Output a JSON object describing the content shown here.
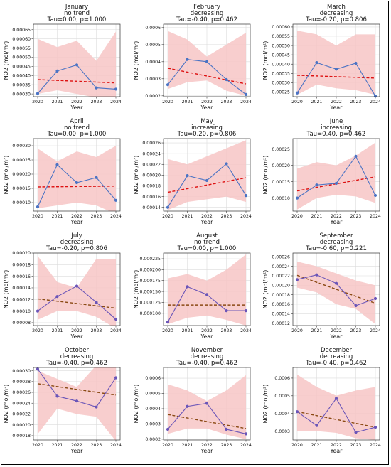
{
  "chart_data": [
    {
      "type": "line",
      "month": "January",
      "trend": "no trend",
      "stats": "Tau=0.00, p=1.000",
      "xlabel": "Year",
      "ylabel": "NO2 (mol/m²)",
      "x": [
        "2020",
        "2021",
        "2022",
        "2023",
        "2024"
      ],
      "y": [
        0.000302,
        0.000425,
        0.000458,
        0.000333,
        0.000326
      ],
      "trend_line": [
        0.000378,
        0.00036
      ],
      "band_upper": [
        0.0006,
        0.000555,
        0.00059,
        0.00048,
        0.00064
      ],
      "band_lower": [
        0.0003,
        0.00032,
        0.0003,
        0.00028,
        0.00026
      ],
      "ylim": [
        0.000285,
        0.00068
      ],
      "yticks": [
        "0.00030",
        "0.00035",
        "0.00040",
        "0.00045",
        "0.00050",
        "0.00055",
        "0.00060",
        "0.00065"
      ],
      "ytick_values": [
        0.0003,
        0.00035,
        0.0004,
        0.00045,
        0.0005,
        0.00055,
        0.0006,
        0.00065
      ]
    },
    {
      "type": "line",
      "month": "February",
      "trend": "decreasing",
      "stats": "Tau=-0.40, p=0.462",
      "xlabel": "Year",
      "ylabel": "NO2 (mol/m²)",
      "x": [
        "2020",
        "2021",
        "2022",
        "2023",
        "2024"
      ],
      "y": [
        0.000265,
        0.000413,
        0.0004,
        0.000295,
        0.000208
      ],
      "trend_line": [
        0.000362,
        0.00027
      ],
      "band_upper": [
        0.00058,
        0.00053,
        0.00043,
        0.0005,
        0.00057
      ],
      "band_lower": [
        0.00024,
        0.00028,
        0.00029,
        0.00023,
        0.0002
      ],
      "ylim": [
        0.000195,
        0.00062
      ],
      "yticks": [
        "0.0002",
        "0.0003",
        "0.0004",
        "0.0005",
        "0.0006"
      ],
      "ytick_values": [
        0.0002,
        0.0003,
        0.0004,
        0.0005,
        0.0006
      ]
    },
    {
      "type": "line",
      "month": "March",
      "trend": "decreasing",
      "stats": "Tau=-0.20, p=0.806",
      "xlabel": "Year",
      "ylabel": "NO2 (mol/m²)",
      "x": [
        "2020",
        "2021",
        "2022",
        "2023",
        "2024"
      ],
      "y": [
        0.000245,
        0.000408,
        0.000373,
        0.000405,
        0.000228
      ],
      "trend_line": [
        0.00034,
        0.000325
      ],
      "band_upper": [
        0.00058,
        0.00056,
        0.0005,
        0.00056,
        0.00056
      ],
      "band_lower": [
        0.000235,
        0.00029,
        0.00027,
        0.00026,
        0.000235
      ],
      "ylim": [
        0.000225,
        0.000615
      ],
      "yticks": [
        "0.00025",
        "0.00030",
        "0.00035",
        "0.00040",
        "0.00045",
        "0.00050",
        "0.00055",
        "0.00060"
      ],
      "ytick_values": [
        0.00025,
        0.0003,
        0.00035,
        0.0004,
        0.00045,
        0.0005,
        0.00055,
        0.0006
      ]
    },
    {
      "type": "line",
      "month": "April",
      "trend": "no trend",
      "stats": "Tau=0.00, p=1.000",
      "xlabel": "Year",
      "ylabel": "NO2 (mol/m²)",
      "x": [
        "2020",
        "2021",
        "2022",
        "2023",
        "2024"
      ],
      "y": [
        8.5e-05,
        0.000233,
        0.00017,
        0.000188,
        0.000108
      ],
      "trend_line": [
        0.000155,
        0.000158
      ],
      "band_upper": [
        0.00029,
        0.000245,
        0.00028,
        0.00026,
        0.0003
      ],
      "band_lower": [
        8e-05,
        9e-05,
        0.0001,
        9e-05,
        6e-05
      ],
      "ylim": [
        7e-05,
        0.000325
      ],
      "yticks": [
        "0.00010",
        "0.00015",
        "0.00020",
        "0.00025",
        "0.00030"
      ],
      "ytick_values": [
        0.0001,
        0.00015,
        0.0002,
        0.00025,
        0.0003
      ]
    },
    {
      "type": "line",
      "month": "May",
      "trend": "increasing",
      "stats": "Tau=0.20, p=0.806",
      "xlabel": "Year",
      "ylabel": "NO2 (mol/m²)",
      "x": [
        "2020",
        "2021",
        "2022",
        "2023",
        "2024"
      ],
      "y": [
        0.00014,
        0.000199,
        0.00019,
        0.000221,
        0.000162
      ],
      "trend_line": [
        0.000168,
        0.000195
      ],
      "band_upper": [
        0.00023,
        0.00022,
        0.000235,
        0.00025,
        0.000265
      ],
      "band_lower": [
        0.000135,
        0.00015,
        0.000155,
        0.00016,
        0.00015
      ],
      "ylim": [
        0.000133,
        0.000268
      ],
      "yticks": [
        "0.00014",
        "0.00016",
        "0.00018",
        "0.00020",
        "0.00022",
        "0.00024",
        "0.00026"
      ],
      "ytick_values": [
        0.00014,
        0.00016,
        0.00018,
        0.0002,
        0.00022,
        0.00024,
        0.00026
      ]
    },
    {
      "type": "line",
      "month": "June",
      "trend": "increasing",
      "stats": "Tau=0.40, p=0.462",
      "xlabel": "Year",
      "ylabel": "NO2 (mol/m²)",
      "x": [
        "2020",
        "2021",
        "2022",
        "2023",
        "2024"
      ],
      "y": [
        0.0001,
        0.00014,
        0.000145,
        0.000228,
        0.000108
      ],
      "trend_line": [
        0.000122,
        0.000165
      ],
      "band_upper": [
        0.00019,
        0.00021,
        0.0002,
        0.00023,
        0.00027
      ],
      "band_lower": [
        6.5e-05,
        0.0001,
        0.00011,
        0.000105,
        8.5e-05
      ],
      "ylim": [
        6e-05,
        0.000282
      ],
      "yticks": [
        "0.00010",
        "0.00015",
        "0.00020",
        "0.00025"
      ],
      "ytick_values": [
        0.0001,
        0.00015,
        0.0002,
        0.00025
      ]
    },
    {
      "type": "line",
      "month": "July",
      "trend": "decreasing",
      "stats": "Tau=-0.20, p=0.806",
      "xlabel": "Year",
      "ylabel": "NO2 (mol/m²)",
      "x": [
        "2020",
        "2021",
        "2022",
        "2023",
        "2024"
      ],
      "y": [
        0.0001,
        0.000125,
        0.000143,
        0.000115,
        8.6e-05
      ],
      "trend_line": [
        0.000121,
        0.000105
      ],
      "band_upper": [
        0.000195,
        0.00015,
        0.00014,
        0.00019,
        0.00019
      ],
      "band_lower": [
        8.5e-05,
        0.0001,
        0.0001,
        9e-05,
        7e-05
      ],
      "ylim": [
        7.5e-05,
        0.0002
      ],
      "yticks": [
        "0.00008",
        "0.00010",
        "0.00012",
        "0.00014",
        "0.00016",
        "0.00018",
        "0.00020"
      ],
      "ytick_values": [
        8e-05,
        0.0001,
        0.00012,
        0.00014,
        0.00016,
        0.00018,
        0.0002
      ]
    },
    {
      "type": "line",
      "month": "August",
      "trend": "no trend",
      "stats": "Tau=0.00, p=1.000",
      "xlabel": "Year",
      "ylabel": "NO2 (mol/m²)",
      "x": [
        "2020",
        "2021",
        "2022",
        "2023",
        "2024"
      ],
      "y": [
        8e-05,
        0.000161,
        0.000143,
        0.000106,
        0.000106
      ],
      "trend_line": [
        0.000119,
        0.000119
      ],
      "band_upper": [
        0.00018,
        0.00019,
        0.000175,
        0.0002,
        0.000235
      ],
      "band_lower": [
        7.5e-05,
        9e-05,
        9.5e-05,
        8.5e-05,
        7.2e-05
      ],
      "ylim": [
        7.2e-05,
        0.000238
      ],
      "yticks": [
        "0.000100",
        "0.000125",
        "0.000150",
        "0.000175",
        "0.000200",
        "0.000225"
      ],
      "ytick_values": [
        0.0001,
        0.000125,
        0.00015,
        0.000175,
        0.0002,
        0.000225
      ]
    },
    {
      "type": "line",
      "month": "September",
      "trend": "decreasing",
      "stats": "Tau=-0.60, p=0.221",
      "xlabel": "Year",
      "ylabel": "NO2 (mol/m²)",
      "x": [
        "2020",
        "2021",
        "2022",
        "2023",
        "2024"
      ],
      "y": [
        0.000212,
        0.000222,
        0.000204,
        0.000157,
        0.000172
      ],
      "trend_line": [
        0.000221,
        0.000162
      ],
      "band_upper": [
        0.00025,
        0.00024,
        0.000225,
        0.00021,
        0.0002
      ],
      "band_lower": [
        0.000195,
        0.000185,
        0.00016,
        0.00015,
        0.000118
      ],
      "ylim": [
        0.000115,
        0.000268
      ],
      "yticks": [
        "0.00012",
        "0.00014",
        "0.00016",
        "0.00018",
        "0.00020",
        "0.00022",
        "0.00024",
        "0.00026"
      ],
      "ytick_values": [
        0.00012,
        0.00014,
        0.00016,
        0.00018,
        0.0002,
        0.00022,
        0.00024,
        0.00026
      ]
    },
    {
      "type": "line",
      "month": "October",
      "trend": "decreasing",
      "stats": "Tau=-0.40, p=0.462",
      "xlabel": "Year",
      "ylabel": "NO2 (mol/m²)",
      "x": [
        "2020",
        "2021",
        "2022",
        "2023",
        "2024"
      ],
      "y": [
        0.000303,
        0.000253,
        0.000244,
        0.000233,
        0.000287
      ],
      "trend_line": [
        0.000276,
        0.000255
      ],
      "band_upper": [
        0.0003,
        0.000285,
        0.00027,
        0.00031,
        0.000325
      ],
      "band_lower": [
        0.000183,
        0.00023,
        0.00022,
        0.000215,
        0.00017
      ],
      "ylim": [
        0.000172,
        0.000306
      ],
      "yticks": [
        "0.00018",
        "0.00020",
        "0.00022",
        "0.00024",
        "0.00026",
        "0.00028",
        "0.00030"
      ],
      "ytick_values": [
        0.00018,
        0.0002,
        0.00022,
        0.00024,
        0.00026,
        0.00028,
        0.0003
      ]
    },
    {
      "type": "line",
      "month": "November",
      "trend": "decreasing",
      "stats": "Tau=-0.40, p=0.462",
      "xlabel": "Year",
      "ylabel": "NO2 (mol/m²)",
      "x": [
        "2020",
        "2021",
        "2022",
        "2023",
        "2024"
      ],
      "y": [
        0.000265,
        0.000415,
        0.000435,
        0.000265,
        0.000235
      ],
      "trend_line": [
        0.000362,
        0.00027
      ],
      "band_upper": [
        0.00056,
        0.00052,
        0.00045,
        0.00052,
        0.00062
      ],
      "band_lower": [
        0.000235,
        0.00027,
        0.00027,
        0.00023,
        0.0002
      ],
      "ylim": [
        0.000195,
        0.00067
      ],
      "yticks": [
        "0.0002",
        "0.0003",
        "0.0004",
        "0.0005",
        "0.0006"
      ],
      "ytick_values": [
        0.0002,
        0.0003,
        0.0004,
        0.0005,
        0.0006
      ]
    },
    {
      "type": "line",
      "month": "December",
      "trend": "decreasing",
      "stats": "Tau=-0.40, p=0.462",
      "xlabel": "Year",
      "ylabel": "NO2 (mol/m²)",
      "x": [
        "2020",
        "2021",
        "2022",
        "2023",
        "2024"
      ],
      "y": [
        0.00041,
        0.000332,
        0.000485,
        0.000293,
        0.000322
      ],
      "trend_line": [
        0.00041,
        0.000322
      ],
      "band_upper": [
        0.00062,
        0.00055,
        0.0005,
        0.00053,
        0.00055
      ],
      "band_lower": [
        0.0003,
        0.0003,
        0.00029,
        0.00026,
        0.00025
      ],
      "ylim": [
        0.00025,
        0.00066
      ],
      "yticks": [
        "0.0003",
        "0.0004",
        "0.0005",
        "0.0006"
      ],
      "ytick_values": [
        0.0003,
        0.0004,
        0.0005,
        0.0006
      ]
    }
  ],
  "colors": {
    "band": "#f7c6c6",
    "grid": "#dcdcdc",
    "line_blue": "#4a73c4",
    "line_purple": "#6a55b8",
    "trend_red": "#dd1111",
    "trend_olive": "#8a4a14"
  }
}
